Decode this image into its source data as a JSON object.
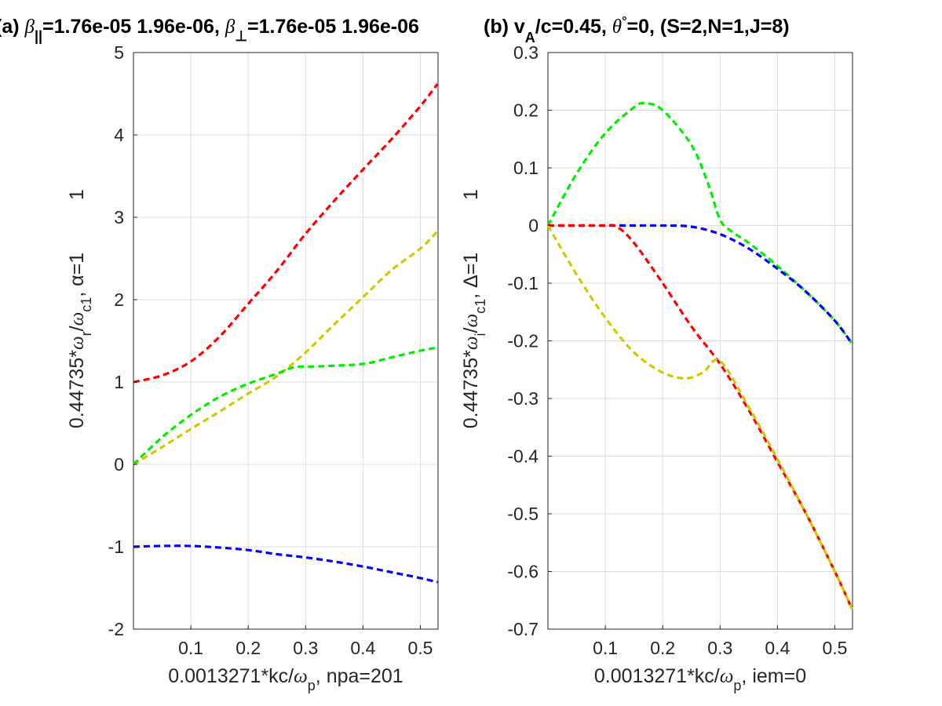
{
  "title_left": {
    "prefix": "(a) ",
    "beta": "β",
    "par_sub": "||",
    "part2": "=1.76e-05  1.96e-06, ",
    "perp_sub": "⊥",
    "part3": "=1.76e-05  1.96e-06"
  },
  "title_right": {
    "prefix": "(b) v",
    "sub": "A",
    "part2": "/c=0.45, ",
    "theta": "θ",
    "deg": "°",
    "part3": "=0, (S=2,N=1,J=8)"
  },
  "chart_data": [
    {
      "type": "line",
      "panel": "a",
      "xlabel": "0.0013271*kc/ω_p, npa=201",
      "xlabel_parts": {
        "pre": "0.0013271*kc/",
        "omega": "ω",
        "sub": "p",
        "post": ", npa=201"
      },
      "ylabel": "0.44735*ω_r/ω_c1, α=1",
      "ylabel_parts": {
        "pre": "0.44735*",
        "omega1": "ω",
        "sub1": "r",
        "slash": "/",
        "omega2": "ω",
        "sub2": "c1",
        "post": ", α=1"
      },
      "ylabel_extra": "1",
      "xlim": [
        0,
        0.5308
      ],
      "ylim": [
        -2,
        5
      ],
      "xticks": [
        0.1,
        0.2,
        0.3,
        0.4,
        0.5
      ],
      "xtick_labels": [
        "0.1",
        "0.2",
        "0.3",
        "0.4",
        "0.5"
      ],
      "yticks": [
        -2,
        -1,
        0,
        1,
        2,
        3,
        4,
        5
      ],
      "ytick_labels": [
        "-2",
        "-1",
        "0",
        "1",
        "2",
        "3",
        "4",
        "5"
      ],
      "grid": true,
      "series": [
        {
          "color": "#ff0000",
          "x": [
            0,
            0.05,
            0.1,
            0.15,
            0.2,
            0.25,
            0.3,
            0.35,
            0.4,
            0.45,
            0.5,
            0.53
          ],
          "y": [
            1.0,
            1.08,
            1.25,
            1.55,
            1.95,
            2.35,
            2.8,
            3.2,
            3.58,
            3.95,
            4.35,
            4.62
          ]
        },
        {
          "color": "#cccc00",
          "x": [
            0,
            0.05,
            0.1,
            0.15,
            0.2,
            0.25,
            0.3,
            0.35,
            0.4,
            0.45,
            0.5,
            0.53
          ],
          "y": [
            0.0,
            0.21,
            0.43,
            0.64,
            0.86,
            1.07,
            1.36,
            1.7,
            2.03,
            2.36,
            2.62,
            2.83
          ]
        },
        {
          "color": "#00ee00",
          "x": [
            0,
            0.05,
            0.1,
            0.15,
            0.2,
            0.25,
            0.28,
            0.32,
            0.4,
            0.45,
            0.5,
            0.53
          ],
          "y": [
            0.0,
            0.33,
            0.6,
            0.82,
            0.98,
            1.1,
            1.18,
            1.19,
            1.22,
            1.3,
            1.38,
            1.42
          ]
        },
        {
          "color": "#0000ff",
          "x": [
            0,
            0.05,
            0.1,
            0.15,
            0.2,
            0.25,
            0.3,
            0.35,
            0.4,
            0.45,
            0.5,
            0.53
          ],
          "y": [
            -1.0,
            -0.99,
            -0.99,
            -1.01,
            -1.04,
            -1.09,
            -1.13,
            -1.18,
            -1.24,
            -1.31,
            -1.38,
            -1.43
          ]
        }
      ]
    },
    {
      "type": "line",
      "panel": "b",
      "xlabel": "0.0013271*kc/ω_p, iem=0",
      "xlabel_parts": {
        "pre": "0.0013271*kc/",
        "omega": "ω",
        "sub": "p",
        "post": ", iem=0"
      },
      "ylabel": "0.44735*ω_i/ω_c1, Δ=1",
      "ylabel_parts": {
        "pre": "0.44735*",
        "omega1": "ω",
        "sub1": "i",
        "slash": "/",
        "omega2": "ω",
        "sub2": "c1",
        "post": ", Δ=1"
      },
      "ylabel_extra": "1",
      "xlim": [
        0,
        0.5308
      ],
      "ylim": [
        -0.7,
        0.3
      ],
      "xticks": [
        0.1,
        0.2,
        0.3,
        0.4,
        0.5
      ],
      "xtick_labels": [
        "0.1",
        "0.2",
        "0.3",
        "0.4",
        "0.5"
      ],
      "yticks": [
        -0.7,
        -0.6,
        -0.5,
        -0.4,
        -0.3,
        -0.2,
        -0.1,
        0,
        0.1,
        0.2,
        0.3
      ],
      "ytick_labels": [
        "-0.7",
        "-0.6",
        "-0.5",
        "-0.4",
        "-0.3",
        "-0.2",
        "-0.1",
        "0",
        "0.1",
        "0.2",
        "0.3"
      ],
      "grid": true,
      "series": [
        {
          "color": "#00ee00",
          "x": [
            0,
            0.05,
            0.1,
            0.15,
            0.17,
            0.2,
            0.25,
            0.28,
            0.3,
            0.32,
            0.35,
            0.4,
            0.45,
            0.5,
            0.53
          ],
          "y": [
            0.0,
            0.09,
            0.16,
            0.205,
            0.212,
            0.2,
            0.14,
            0.07,
            0.01,
            -0.01,
            -0.03,
            -0.07,
            -0.115,
            -0.165,
            -0.205
          ]
        },
        {
          "color": "#0000ff",
          "x": [
            0,
            0.05,
            0.1,
            0.15,
            0.2,
            0.25,
            0.3,
            0.35,
            0.4,
            0.45,
            0.5,
            0.53
          ],
          "y": [
            0.0,
            0.0,
            0.0,
            0.0,
            0.0,
            -0.002,
            -0.015,
            -0.04,
            -0.075,
            -0.115,
            -0.165,
            -0.205
          ]
        },
        {
          "color": "#ff0000",
          "x": [
            0,
            0.05,
            0.1,
            0.12,
            0.15,
            0.2,
            0.25,
            0.3,
            0.35,
            0.4,
            0.45,
            0.5,
            0.53
          ],
          "y": [
            0.0,
            0.0,
            0.0,
            -0.002,
            -0.03,
            -0.1,
            -0.175,
            -0.24,
            -0.32,
            -0.41,
            -0.5,
            -0.6,
            -0.665
          ]
        },
        {
          "color": "#cccc00",
          "x": [
            0,
            0.05,
            0.1,
            0.15,
            0.2,
            0.24,
            0.27,
            0.3,
            0.35,
            0.4,
            0.45,
            0.5,
            0.53
          ],
          "y": [
            0.0,
            -0.085,
            -0.16,
            -0.22,
            -0.255,
            -0.265,
            -0.255,
            -0.235,
            -0.315,
            -0.405,
            -0.5,
            -0.6,
            -0.665
          ]
        }
      ]
    }
  ]
}
